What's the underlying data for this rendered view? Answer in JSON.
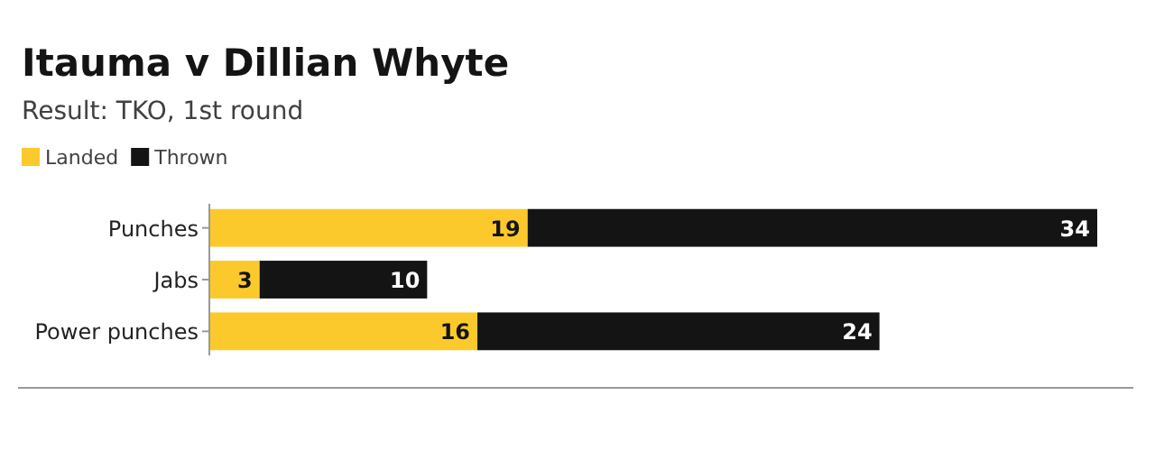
{
  "chart_data": {
    "type": "bar",
    "orientation": "horizontal",
    "stacked": true,
    "title": "Itauma v Dillian Whyte",
    "subtitle": "Result: TKO, 1st round",
    "categories": [
      "Punches",
      "Jabs",
      "Power punches"
    ],
    "series": [
      {
        "name": "Landed",
        "color": "#fcc92c",
        "values": [
          19,
          3,
          16
        ]
      },
      {
        "name": "Thrown",
        "color": "#141414",
        "values": [
          34,
          10,
          24
        ]
      }
    ],
    "data_labels": true,
    "legend": "top left",
    "grid": false
  }
}
